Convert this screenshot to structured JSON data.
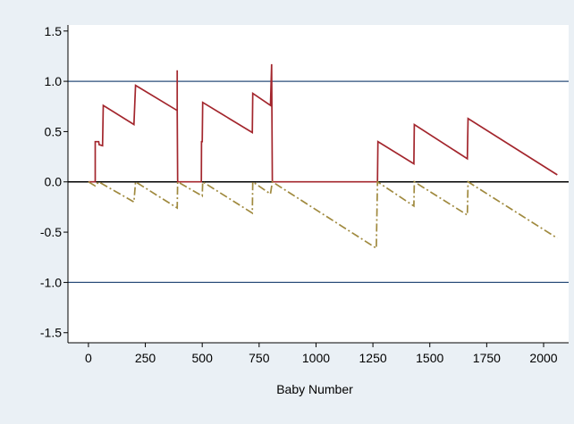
{
  "chart_data": {
    "type": "line",
    "title": "",
    "xlabel": "Baby Number",
    "ylabel": "",
    "xlim": [
      -90,
      2110
    ],
    "ylim": [
      -1.6,
      1.56
    ],
    "x_ticks": [
      0,
      250,
      500,
      750,
      1000,
      1250,
      1500,
      1750,
      2000
    ],
    "x_tick_labels": [
      "0",
      "250",
      "500",
      "750",
      "1000",
      "1250",
      "1500",
      "1750",
      "2000"
    ],
    "y_ticks": [
      1.5,
      1.0,
      0.5,
      0.0,
      -0.5,
      -1.0,
      -1.5
    ],
    "y_tick_labels": [
      "1.5",
      "1.0",
      "0.5",
      "0.0",
      "-0.5",
      "-1.0",
      "-1.5"
    ],
    "grid": false,
    "legend": "none",
    "reference_lines": [
      {
        "y": 1.0,
        "color": "#2a4d7a"
      },
      {
        "y": 0.0,
        "color": "#000000"
      },
      {
        "y": -1.0,
        "color": "#2a4d7a"
      }
    ],
    "series": [
      {
        "color": "#a3262d",
        "style": "solid",
        "points": [
          [
            0,
            0
          ],
          [
            30,
            0
          ],
          [
            30,
            0.4
          ],
          [
            45,
            0.4
          ],
          [
            47,
            0.37
          ],
          [
            62,
            0.36
          ],
          [
            65,
            0.76
          ],
          [
            200,
            0.57
          ],
          [
            207,
            0.96
          ],
          [
            390,
            0.71
          ],
          [
            390,
            1.11
          ],
          [
            390,
            0.71
          ],
          [
            392,
            0.0
          ],
          [
            496,
            0.0
          ],
          [
            497,
            0.4
          ],
          [
            500,
            0.4
          ],
          [
            502,
            0.79
          ],
          [
            720,
            0.49
          ],
          [
            722,
            0.88
          ],
          [
            800,
            0.76
          ],
          [
            805,
            1.17
          ],
          [
            808,
            0.0
          ],
          [
            1270,
            0.0
          ],
          [
            1272,
            0.4
          ],
          [
            1430,
            0.18
          ],
          [
            1432,
            0.57
          ],
          [
            1665,
            0.23
          ],
          [
            1668,
            0.63
          ],
          [
            2060,
            0.07
          ]
        ]
      },
      {
        "color": "#a08a3f",
        "style": "dashdot",
        "points": [
          [
            0,
            0
          ],
          [
            30,
            -0.04
          ],
          [
            45,
            0
          ],
          [
            200,
            -0.2
          ],
          [
            207,
            0
          ],
          [
            390,
            -0.26
          ],
          [
            392,
            0
          ],
          [
            500,
            -0.14
          ],
          [
            502,
            0
          ],
          [
            720,
            -0.31
          ],
          [
            722,
            0
          ],
          [
            800,
            -0.12
          ],
          [
            808,
            0
          ],
          [
            1265,
            -0.66
          ],
          [
            1270,
            0
          ],
          [
            1430,
            -0.24
          ],
          [
            1432,
            0
          ],
          [
            1665,
            -0.33
          ],
          [
            1668,
            0
          ],
          [
            2060,
            -0.56
          ]
        ]
      }
    ]
  }
}
